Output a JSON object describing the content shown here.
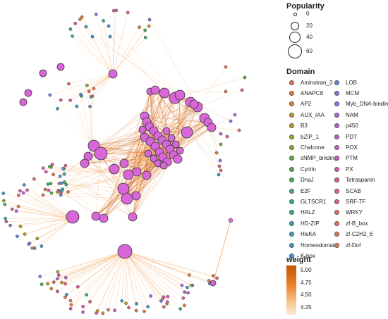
{
  "legend": {
    "popularity": {
      "title": "Popularity",
      "items": [
        {
          "label": "0",
          "value": 0
        },
        {
          "label": "20",
          "value": 20
        },
        {
          "label": "40",
          "value": 40
        },
        {
          "label": "60",
          "value": 60
        }
      ]
    },
    "domain": {
      "title": "Domain",
      "items": [
        {
          "label": "Aminotran_3",
          "color": "#e8754f"
        },
        {
          "label": "ANAPC8",
          "color": "#e07a3a"
        },
        {
          "label": "AP2",
          "color": "#d98b2b"
        },
        {
          "label": "AUX_IAA",
          "color": "#c99b1f"
        },
        {
          "label": "B3",
          "color": "#b7a41a"
        },
        {
          "label": "bZIP_1",
          "color": "#a2a821"
        },
        {
          "label": "Chalcone",
          "color": "#8aac2c"
        },
        {
          "label": "cNMP_binding",
          "color": "#6aaf36"
        },
        {
          "label": "Cyclin",
          "color": "#4fb23f"
        },
        {
          "label": "DnaJ",
          "color": "#3fb45a"
        },
        {
          "label": "E2F",
          "color": "#36b377"
        },
        {
          "label": "GLTSCR1",
          "color": "#33b08f"
        },
        {
          "label": "HALZ",
          "color": "#34aca3"
        },
        {
          "label": "HD-ZIP",
          "color": "#36a8b6"
        },
        {
          "label": "HisKA",
          "color": "#3aa2c6"
        },
        {
          "label": "Homeodomain",
          "color": "#3f9ad4"
        },
        {
          "label": "K-box",
          "color": "#4a8ede"
        },
        {
          "label": "LOB",
          "color": "#6584e6"
        },
        {
          "label": "MCM",
          "color": "#7e79ea"
        },
        {
          "label": "Myb_DNA-binding",
          "color": "#966fec"
        },
        {
          "label": "NAM",
          "color": "#a966e8"
        },
        {
          "label": "p450",
          "color": "#b95fe1"
        },
        {
          "label": "PDT",
          "color": "#c75ad7"
        },
        {
          "label": "POX",
          "color": "#d257ca"
        },
        {
          "label": "PTM",
          "color": "#db55bc"
        },
        {
          "label": "PX",
          "color": "#e155ac"
        },
        {
          "label": "Tetraspanin",
          "color": "#e6579b"
        },
        {
          "label": "SCAB",
          "color": "#e95b8a"
        },
        {
          "label": "SRF-TF",
          "color": "#eb6178"
        },
        {
          "label": "WRKY",
          "color": "#ec6867"
        },
        {
          "label": "zf-B_box",
          "color": "#ec6f5a"
        },
        {
          "label": "zf-C2H2_6",
          "color": "#ea7450"
        },
        {
          "label": "zf-Dof",
          "color": "#e8784a"
        }
      ]
    },
    "weight": {
      "title": "weight",
      "ticks": [
        {
          "label": "5.00",
          "value": 5.0
        },
        {
          "label": "4.75",
          "value": 4.75
        },
        {
          "label": "4.50",
          "value": 4.5
        },
        {
          "label": "4.25",
          "value": 4.25
        }
      ],
      "range": [
        4.1,
        5.1
      ],
      "color_low": "#fdebd3",
      "color_high": "#c65400"
    }
  },
  "network": {
    "node_color": "#d966d9",
    "edge_color": "#ef9a3c"
  }
}
